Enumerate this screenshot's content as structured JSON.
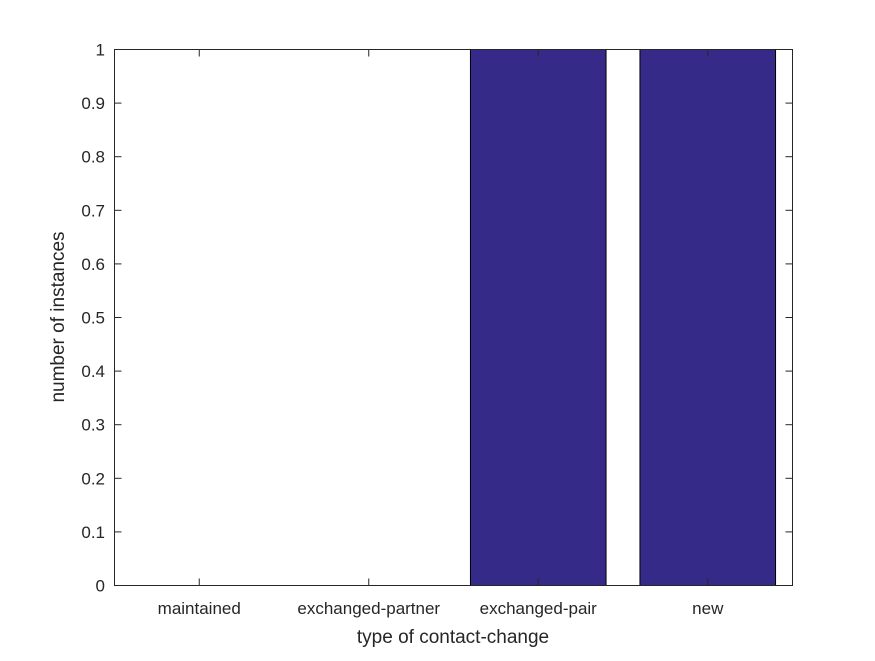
{
  "chart_data": {
    "type": "bar",
    "categories": [
      "maintained",
      "exchanged-partner",
      "exchanged-pair",
      "new"
    ],
    "values": [
      0,
      0,
      1,
      1
    ],
    "title": "",
    "xlabel": "type of contact-change",
    "ylabel": "number of instances",
    "ylim": [
      0,
      1
    ],
    "yticks": [
      "0",
      "0.1",
      "0.2",
      "0.3",
      "0.4",
      "0.5",
      "0.6",
      "0.7",
      "0.8",
      "0.9",
      "1"
    ],
    "grid": false,
    "bar_color": "#352a87"
  }
}
